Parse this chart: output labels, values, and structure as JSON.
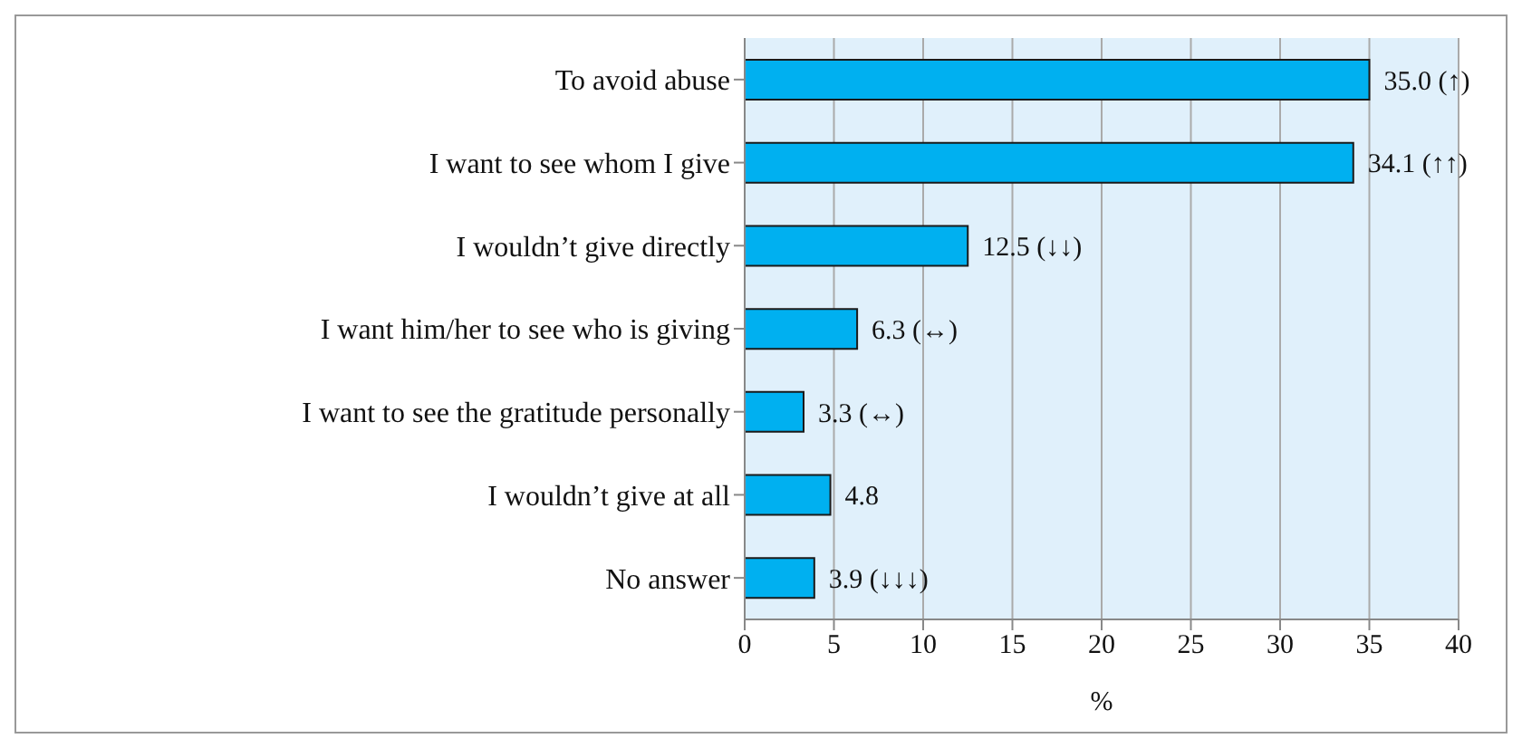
{
  "chart_data": {
    "type": "bar",
    "orientation": "horizontal",
    "xlabel": "%",
    "categories": [
      "To avoid abuse",
      "I want to see whom I give",
      "I wouldn’t give directly",
      "I want him/her to see who is giving",
      "I want to see the gratitude personally",
      "I wouldn’t give at all",
      "No answer"
    ],
    "values": [
      35.0,
      34.1,
      12.5,
      6.3,
      3.3,
      4.8,
      3.9
    ],
    "value_labels": [
      "35.0 (↑)",
      "34.1 (↑↑)",
      "12.5 (↓↓)",
      "6.3 (↔)",
      "3.3 (↔)",
      "4.8",
      "3.9 (↓↓↓)"
    ],
    "color": "#00b0f0",
    "xlim": [
      0,
      40
    ],
    "xticks": [
      0,
      5,
      10,
      15,
      20,
      25,
      30,
      35,
      40
    ],
    "grid": "x"
  }
}
